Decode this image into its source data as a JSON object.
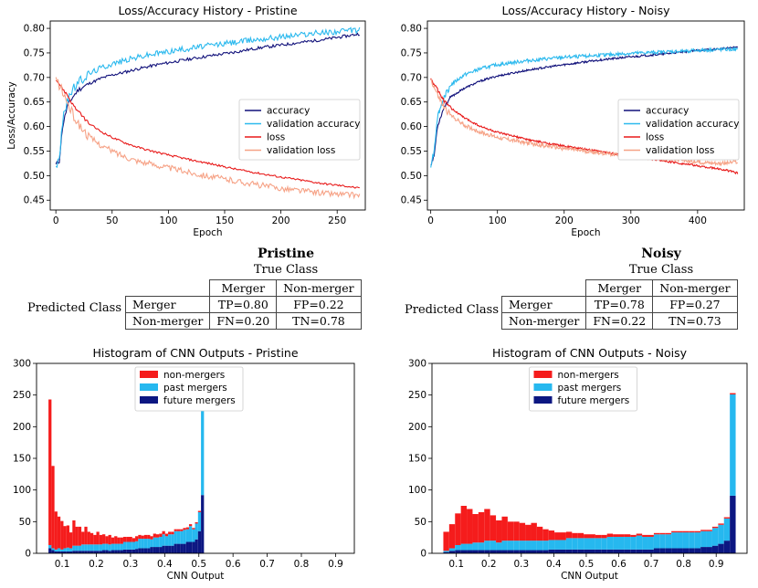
{
  "chart_data": [
    {
      "id": "loss_pristine",
      "type": "line",
      "title": "Loss/Accuracy History - Pristine",
      "xlabel": "Epoch",
      "ylabel": "Loss/Accuracy",
      "xlim": [
        -5,
        275
      ],
      "ylim": [
        0.43,
        0.815
      ],
      "xticks": [
        "0",
        "50",
        "100",
        "150",
        "200",
        "250"
      ],
      "xtick_values": [
        0,
        50,
        100,
        150,
        200,
        250
      ],
      "yticks": [
        "0.45",
        "0.50",
        "0.55",
        "0.60",
        "0.65",
        "0.70",
        "0.75",
        "0.80"
      ],
      "ytick_values": [
        0.45,
        0.5,
        0.55,
        0.6,
        0.65,
        0.7,
        0.75,
        0.8
      ],
      "legend_position": "center-right",
      "series": [
        {
          "name": "accuracy",
          "color": "#10107a",
          "x": [
            0,
            3,
            6,
            10,
            15,
            20,
            30,
            40,
            50,
            60,
            70,
            80,
            90,
            100,
            120,
            140,
            160,
            180,
            200,
            220,
            240,
            260,
            270
          ],
          "values": [
            0.522,
            0.53,
            0.6,
            0.64,
            0.66,
            0.675,
            0.688,
            0.698,
            0.705,
            0.71,
            0.716,
            0.721,
            0.726,
            0.73,
            0.738,
            0.745,
            0.752,
            0.76,
            0.766,
            0.772,
            0.778,
            0.785,
            0.789
          ]
        },
        {
          "name": "validation accuracy",
          "color": "#2bb9ee",
          "x": [
            0,
            3,
            6,
            10,
            15,
            20,
            30,
            40,
            50,
            60,
            70,
            80,
            90,
            100,
            120,
            140,
            160,
            180,
            200,
            220,
            240,
            260,
            270
          ],
          "values": [
            0.522,
            0.53,
            0.61,
            0.655,
            0.675,
            0.69,
            0.708,
            0.72,
            0.728,
            0.734,
            0.74,
            0.745,
            0.749,
            0.753,
            0.76,
            0.766,
            0.772,
            0.778,
            0.783,
            0.788,
            0.792,
            0.795,
            0.797
          ]
        },
        {
          "name": "loss",
          "color": "#e81a1a",
          "x": [
            0,
            5,
            10,
            15,
            20,
            30,
            40,
            50,
            60,
            70,
            80,
            100,
            120,
            140,
            160,
            180,
            200,
            220,
            240,
            260,
            270
          ],
          "values": [
            0.697,
            0.68,
            0.665,
            0.645,
            0.63,
            0.605,
            0.59,
            0.578,
            0.568,
            0.56,
            0.553,
            0.542,
            0.532,
            0.523,
            0.513,
            0.505,
            0.497,
            0.49,
            0.483,
            0.478,
            0.474
          ]
        },
        {
          "name": "validation loss",
          "color": "#f6a286",
          "x": [
            0,
            5,
            10,
            15,
            20,
            30,
            40,
            50,
            60,
            70,
            80,
            100,
            120,
            140,
            160,
            180,
            200,
            220,
            240,
            260,
            270
          ],
          "values": [
            0.697,
            0.675,
            0.65,
            0.625,
            0.605,
            0.578,
            0.562,
            0.55,
            0.54,
            0.532,
            0.526,
            0.516,
            0.506,
            0.497,
            0.489,
            0.481,
            0.474,
            0.469,
            0.464,
            0.461,
            0.46
          ]
        }
      ]
    },
    {
      "id": "loss_noisy",
      "type": "line",
      "title": "Loss/Accuracy History - Noisy",
      "xlabel": "Epoch",
      "ylabel": "",
      "xlim": [
        -5,
        470
      ],
      "ylim": [
        0.43,
        0.815
      ],
      "xticks": [
        "0",
        "100",
        "200",
        "300",
        "400"
      ],
      "xtick_values": [
        0,
        100,
        200,
        300,
        400
      ],
      "yticks": [
        "0.45",
        "0.50",
        "0.55",
        "0.60",
        "0.65",
        "0.70",
        "0.75",
        "0.80"
      ],
      "ytick_values": [
        0.45,
        0.5,
        0.55,
        0.6,
        0.65,
        0.7,
        0.75,
        0.8
      ],
      "legend_position": "center-right",
      "series": [
        {
          "name": "accuracy",
          "color": "#10107a",
          "x": [
            0,
            5,
            10,
            20,
            30,
            50,
            75,
            100,
            150,
            200,
            250,
            300,
            350,
            400,
            440,
            460
          ],
          "values": [
            0.522,
            0.54,
            0.6,
            0.64,
            0.66,
            0.678,
            0.693,
            0.703,
            0.716,
            0.726,
            0.735,
            0.742,
            0.748,
            0.755,
            0.759,
            0.762
          ]
        },
        {
          "name": "validation accuracy",
          "color": "#2bb9ee",
          "x": [
            0,
            5,
            10,
            20,
            30,
            50,
            75,
            100,
            150,
            200,
            250,
            300,
            350,
            400,
            440,
            460
          ],
          "values": [
            0.522,
            0.55,
            0.62,
            0.66,
            0.685,
            0.705,
            0.718,
            0.726,
            0.735,
            0.741,
            0.745,
            0.749,
            0.752,
            0.755,
            0.757,
            0.757
          ]
        },
        {
          "name": "loss",
          "color": "#e81a1a",
          "x": [
            0,
            10,
            20,
            30,
            50,
            75,
            100,
            150,
            200,
            250,
            300,
            350,
            400,
            440,
            460
          ],
          "values": [
            0.697,
            0.675,
            0.652,
            0.638,
            0.618,
            0.6,
            0.588,
            0.572,
            0.56,
            0.55,
            0.54,
            0.53,
            0.52,
            0.512,
            0.505
          ]
        },
        {
          "name": "validation loss",
          "color": "#f6a286",
          "x": [
            0,
            10,
            20,
            30,
            50,
            75,
            100,
            150,
            200,
            250,
            300,
            350,
            400,
            440,
            460
          ],
          "values": [
            0.697,
            0.665,
            0.638,
            0.623,
            0.603,
            0.588,
            0.578,
            0.565,
            0.555,
            0.547,
            0.54,
            0.534,
            0.528,
            0.525,
            0.528
          ]
        }
      ]
    },
    {
      "id": "hist_pristine",
      "type": "bar",
      "stacked": true,
      "title": "Histogram of CNN Outputs - Pristine",
      "xlabel": "CNN Output",
      "ylabel": "",
      "xlim": [
        0.025,
        0.955
      ],
      "ylim": [
        0,
        300
      ],
      "bin_start": 0.06,
      "bin_width": 0.00875,
      "xticks": [
        "0.1",
        "0.2",
        "0.3",
        "0.4",
        "0.5",
        "0.6",
        "0.7",
        "0.8",
        "0.9"
      ],
      "xtick_values": [
        0.1,
        0.2,
        0.3,
        0.4,
        0.5,
        0.6,
        0.7,
        0.8,
        0.9
      ],
      "yticks": [
        "0",
        "50",
        "100",
        "150",
        "200",
        "250",
        "300"
      ],
      "ytick_values": [
        0,
        50,
        100,
        150,
        200,
        250,
        300
      ],
      "legend_position": "top-center",
      "series": [
        {
          "name": "non-mergers",
          "color": "#f51c1c",
          "values": [
            230,
            130,
            60,
            50,
            45,
            35,
            35,
            25,
            40,
            30,
            30,
            20,
            28,
            20,
            18,
            15,
            20,
            15,
            15,
            12,
            15,
            10,
            12,
            10,
            10,
            8,
            8,
            8,
            6,
            8,
            6,
            5,
            6,
            6,
            5,
            6,
            5,
            5,
            5,
            4,
            4,
            4,
            3,
            3,
            3,
            3,
            3,
            3,
            2,
            2,
            2,
            1
          ]
        },
        {
          "name": "past mergers",
          "color": "#26b8ef",
          "values": [
            5,
            3,
            3,
            5,
            3,
            5,
            6,
            5,
            8,
            8,
            8,
            10,
            10,
            10,
            10,
            10,
            10,
            10,
            10,
            10,
            10,
            10,
            10,
            10,
            10,
            12,
            12,
            12,
            12,
            12,
            15,
            15,
            15,
            15,
            12,
            15,
            15,
            16,
            18,
            15,
            18,
            18,
            20,
            20,
            20,
            22,
            20,
            25,
            20,
            25,
            30,
            180
          ]
        },
        {
          "name": "future mergers",
          "color": "#0c1782",
          "values": [
            8,
            5,
            3,
            3,
            3,
            3,
            3,
            3,
            4,
            4,
            4,
            4,
            4,
            4,
            4,
            4,
            4,
            4,
            5,
            5,
            4,
            5,
            5,
            5,
            5,
            6,
            6,
            6,
            6,
            7,
            8,
            8,
            8,
            8,
            10,
            10,
            10,
            10,
            12,
            12,
            12,
            12,
            15,
            15,
            15,
            15,
            18,
            18,
            18,
            22,
            35,
            92
          ]
        }
      ]
    },
    {
      "id": "hist_noisy",
      "type": "bar",
      "stacked": true,
      "title": "Histogram of CNN Outputs - Noisy",
      "xlabel": "CNN Output",
      "ylabel": "",
      "xlim": [
        0.025,
        0.995
      ],
      "ylim": [
        0,
        300
      ],
      "bin_start": 0.06,
      "bin_width": 0.018,
      "xticks": [
        "0.1",
        "0.2",
        "0.3",
        "0.4",
        "0.5",
        "0.6",
        "0.7",
        "0.8",
        "0.9"
      ],
      "xtick_values": [
        0.1,
        0.2,
        0.3,
        0.4,
        0.5,
        0.6,
        0.7,
        0.8,
        0.9
      ],
      "yticks": [
        "0",
        "50",
        "100",
        "150",
        "200",
        "250",
        "300"
      ],
      "ytick_values": [
        0,
        50,
        100,
        150,
        200,
        250,
        300
      ],
      "legend_position": "top-center",
      "series": [
        {
          "name": "non-mergers",
          "color": "#f51c1c",
          "values": [
            30,
            38,
            50,
            60,
            55,
            45,
            48,
            50,
            40,
            35,
            38,
            30,
            30,
            28,
            25,
            28,
            22,
            18,
            15,
            12,
            12,
            10,
            8,
            8,
            6,
            6,
            5,
            5,
            5,
            4,
            4,
            4,
            3,
            3,
            3,
            3,
            2,
            2,
            2,
            2,
            2,
            2,
            2,
            2,
            2,
            2,
            2,
            2,
            2,
            2
          ]
        },
        {
          "name": "past mergers",
          "color": "#26b8ef",
          "values": [
            2,
            4,
            8,
            10,
            10,
            12,
            12,
            15,
            15,
            12,
            15,
            15,
            15,
            15,
            15,
            15,
            15,
            15,
            15,
            15,
            15,
            18,
            18,
            18,
            18,
            18,
            18,
            18,
            20,
            20,
            20,
            20,
            20,
            22,
            20,
            20,
            22,
            22,
            22,
            25,
            25,
            25,
            25,
            25,
            25,
            25,
            28,
            30,
            35,
            160
          ]
        },
        {
          "name": "future mergers",
          "color": "#0c1782",
          "values": [
            2,
            4,
            5,
            5,
            5,
            5,
            5,
            5,
            5,
            5,
            5,
            5,
            5,
            5,
            5,
            5,
            5,
            5,
            6,
            6,
            6,
            6,
            6,
            6,
            6,
            6,
            6,
            6,
            6,
            6,
            6,
            6,
            6,
            6,
            6,
            6,
            8,
            8,
            8,
            8,
            8,
            8,
            8,
            8,
            10,
            10,
            12,
            15,
            20,
            91
          ]
        }
      ]
    }
  ],
  "tables": {
    "pristine": {
      "title": "Pristine",
      "subtitle": "True Class",
      "row_label": "Predicted Class",
      "col_headers": [
        "Merger",
        "Non-merger"
      ],
      "rows": [
        {
          "label": "Merger",
          "cells": [
            "TP=0.80",
            "FP=0.22"
          ]
        },
        {
          "label": "Non-merger",
          "cells": [
            "FN=0.20",
            "TN=0.78"
          ]
        }
      ]
    },
    "noisy": {
      "title": "Noisy",
      "subtitle": "True Class",
      "row_label": "Predicted Class",
      "col_headers": [
        "Merger",
        "Non-merger"
      ],
      "rows": [
        {
          "label": "Merger",
          "cells": [
            "TP=0.78",
            "FP=0.27"
          ]
        },
        {
          "label": "Non-merger",
          "cells": [
            "FN=0.22",
            "TN=0.73"
          ]
        }
      ]
    }
  }
}
